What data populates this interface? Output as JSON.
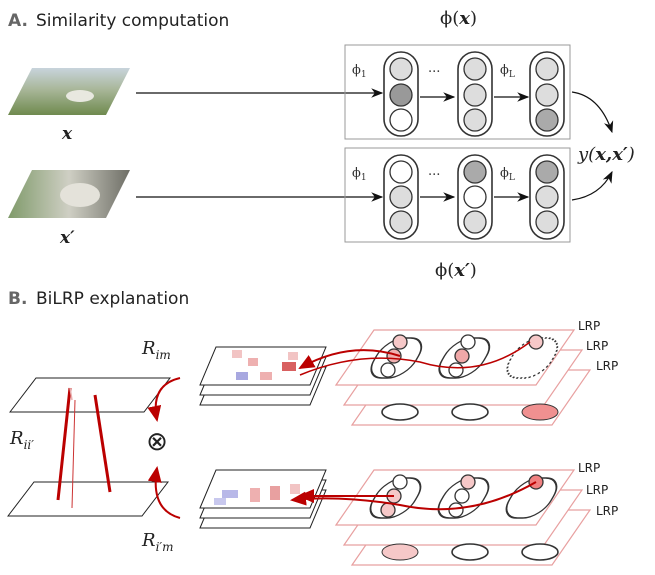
{
  "panel_a": {
    "label": "A.",
    "title": "Similarity computation",
    "feature_top": {
      "symbol": "ϕ(",
      "var": "x",
      "close": ")"
    },
    "feature_bottom": {
      "symbol": "ϕ(",
      "var": "x′",
      "close": ")"
    },
    "input_top": "x",
    "input_bottom": "x′",
    "output": {
      "prefix": "y(",
      "args": "x,x′",
      "close": ")"
    },
    "layer_first": {
      "symbol": "ϕ",
      "sub": "1"
    },
    "layer_last": {
      "symbol": "ϕ",
      "sub": "L"
    },
    "ellipsis": "..."
  },
  "panel_b": {
    "label": "B.",
    "title": "BiLRP explanation",
    "r_im": {
      "symbol": "R",
      "sub": "im"
    },
    "r_ipm": {
      "symbol": "R",
      "sub": "i′m"
    },
    "r_iip": {
      "symbol": "R",
      "sub": "ii′"
    },
    "product": "⊗",
    "lrp": "LRP"
  }
}
